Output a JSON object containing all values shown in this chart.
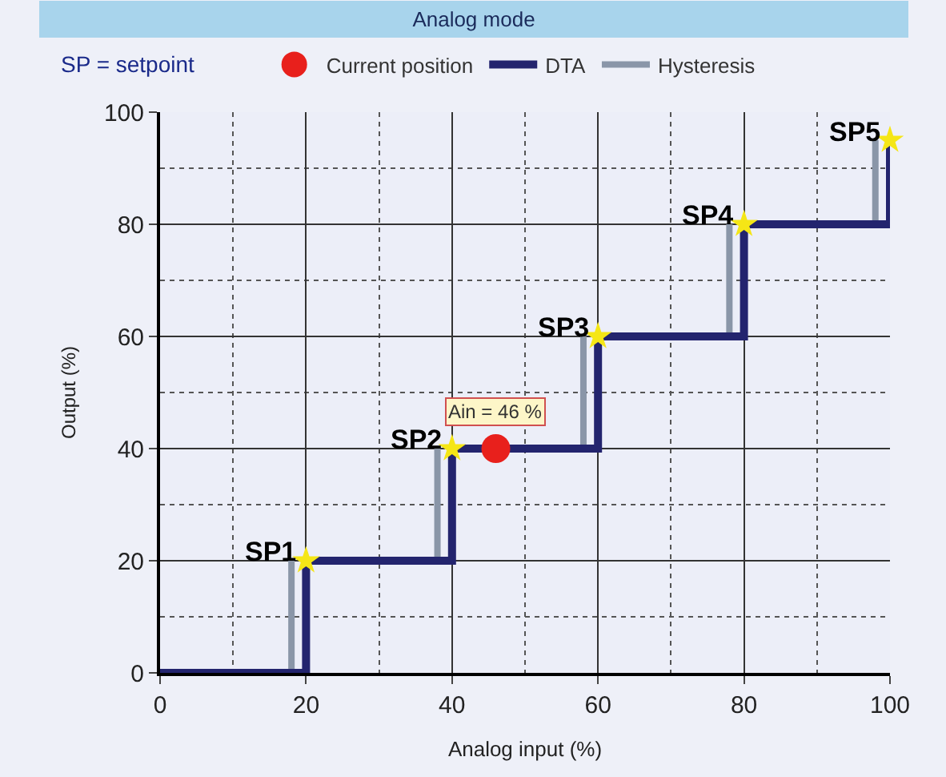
{
  "chart_data": {
    "type": "line",
    "title": "Analog mode",
    "xlabel": "Analog input (%)",
    "ylabel": "Output (%)",
    "xlim": [
      0,
      100
    ],
    "ylim": [
      0,
      100
    ],
    "xticks": [
      0,
      20,
      40,
      60,
      80,
      100
    ],
    "yticks": [
      0,
      20,
      40,
      60,
      80,
      100
    ],
    "grid": true,
    "legend": "top",
    "series": [
      {
        "name": "Current position",
        "type": "scatter",
        "marker": "circle",
        "color": "#e8201c",
        "x": [
          46
        ],
        "values": [
          40
        ]
      },
      {
        "name": "DTA",
        "type": "step",
        "color": "#23246e",
        "x": [
          0,
          20,
          40,
          60,
          80,
          100
        ],
        "values": [
          0,
          20,
          40,
          60,
          80,
          95
        ]
      },
      {
        "name": "Hysteresis",
        "color": "#8a96a8",
        "x": [
          18,
          18
        ],
        "values": [
          0,
          20
        ]
      },
      {
        "color": "#8a96a8",
        "x": [
          38,
          38
        ],
        "values": [
          20,
          40
        ]
      },
      {
        "color": "#8a96a8",
        "x": [
          58,
          58
        ],
        "values": [
          40,
          60
        ]
      },
      {
        "color": "#8a96a8",
        "x": [
          78,
          78
        ],
        "values": [
          60,
          80
        ]
      },
      {
        "color": "#8a96a8",
        "x": [
          98,
          98
        ],
        "values": [
          80,
          95
        ]
      },
      {
        "type": "scatter",
        "marker": "star",
        "color": "#f5e616",
        "x": [
          20,
          40,
          60,
          80,
          100
        ],
        "values": [
          20,
          40,
          60,
          80,
          95
        ]
      }
    ],
    "annotations": [
      "SP = setpoint",
      {
        "text": "Ain = 46 %",
        "x": 46,
        "y": 40
      },
      {
        "text": "SP1",
        "x": 20,
        "y": 20
      },
      {
        "text": "SP2",
        "x": 40,
        "y": 40
      },
      {
        "text": "SP3",
        "x": 60,
        "y": 60
      },
      {
        "text": "SP4",
        "x": 80,
        "y": 80
      },
      {
        "text": "SP5",
        "x": 100,
        "y": 95
      }
    ]
  }
}
